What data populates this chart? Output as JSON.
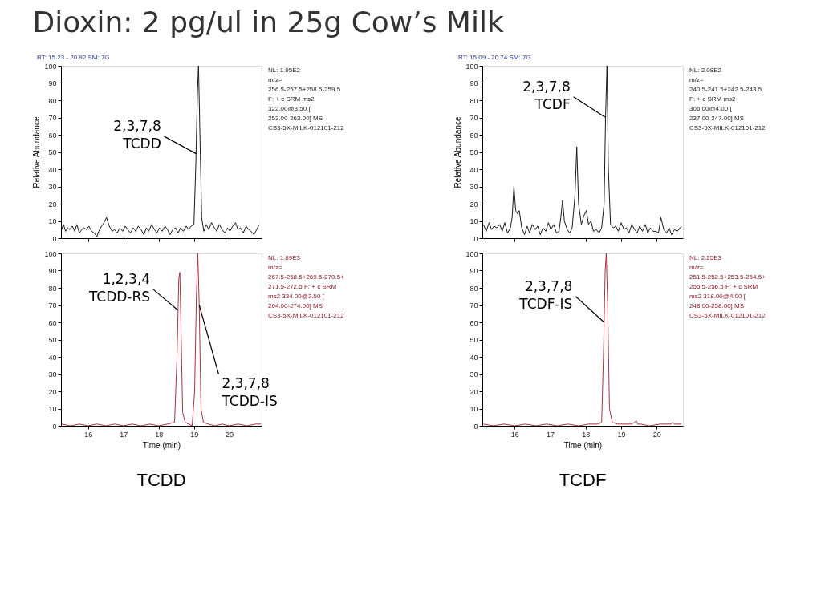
{
  "chart_data": [
    {
      "type": "line",
      "title": "Dioxin: 2 pg/ul in 25g Cow’s Milk",
      "ylabel": "Relative Abundance",
      "xlim": [
        15.23,
        20.92
      ],
      "ylim": [
        0,
        100
      ],
      "xticks": [
        16,
        17,
        18,
        19,
        20
      ],
      "yticks": [
        0,
        10,
        20,
        30,
        40,
        50,
        60,
        70,
        80,
        90,
        100
      ],
      "tick_labels": "y",
      "annotations": [
        "RT: 15.23 - 20.92   SM: 7G",
        "NL: 1.95E2\nm/z=\n256.5-257.5+258.5-259.5\nF: + c SRM ms2\n322.00@3.50 [\n253.00-263.00] MS\nCS3-5X-MILK-012101-212",
        {
          "text": "2,3,7,8\nTCDD",
          "x": 19.06,
          "y": 49
        }
      ],
      "series": [
        {
          "color": "#1a1a1a",
          "x": [
            15.25,
            15.3,
            15.36,
            15.42,
            15.48,
            15.55,
            15.62,
            15.68,
            15.75,
            15.82,
            15.88,
            15.95,
            16.02,
            16.1,
            16.17,
            16.25,
            16.3,
            16.38,
            16.45,
            16.52,
            16.6,
            16.68,
            16.75,
            16.82,
            16.9,
            16.98,
            17.05,
            17.12,
            17.2,
            17.28,
            17.35,
            17.42,
            17.5,
            17.58,
            17.65,
            17.72,
            17.8,
            17.88,
            17.95,
            18.02,
            18.1,
            18.18,
            18.25,
            18.32,
            18.4,
            18.48,
            18.55,
            18.62,
            18.7,
            18.78,
            18.85,
            18.92,
            19.0,
            19.05,
            19.1,
            19.13,
            19.17,
            19.22,
            19.28,
            19.35,
            19.42,
            19.5,
            19.58,
            19.65,
            19.72,
            19.8,
            19.88,
            19.95,
            20.02,
            20.1,
            20.18,
            20.25,
            20.32,
            20.4,
            20.48,
            20.55,
            20.62,
            20.7,
            20.78,
            20.85
          ],
          "values": [
            5,
            8,
            4,
            6,
            5,
            7,
            4,
            8,
            3,
            5,
            6,
            5,
            7,
            4,
            3,
            1,
            4,
            7,
            9,
            12,
            7,
            4,
            5,
            3,
            6,
            4,
            7,
            5,
            3,
            6,
            4,
            7,
            5,
            2,
            6,
            4,
            8,
            5,
            3,
            6,
            4,
            7,
            5,
            2,
            5,
            6,
            3,
            6,
            4,
            7,
            5,
            7,
            8,
            40,
            85,
            100,
            60,
            12,
            4,
            8,
            5,
            9,
            6,
            4,
            8,
            5,
            3,
            6,
            4,
            7,
            9,
            5,
            6,
            3,
            7,
            5,
            4,
            2,
            5,
            8
          ]
        }
      ]
    },
    {
      "type": "line",
      "xlabel": "Time (min)",
      "xlim": [
        15.23,
        20.92
      ],
      "ylim": [
        0,
        100
      ],
      "xticks": [
        16,
        17,
        18,
        19,
        20
      ],
      "yticks": [
        0,
        10,
        20,
        30,
        40,
        50,
        60,
        70,
        80,
        90,
        100
      ],
      "annotations": [
        "NL: 1.89E3\nm/z=\n267.5-268.5+269.5-270.5+\n271.5-272.5 F: + c SRM\nms2 334.00@3.50 [\n264.00-274.00] MS\nCS3-5X-MILK-012101-212",
        "TCDD",
        {
          "text": "1,2,3,4\nTCDD-RS",
          "x": 18.55,
          "y": 67
        },
        {
          "text": "2,3,7,8\nTCDD-IS",
          "x": 19.15,
          "y": 70
        }
      ],
      "series": [
        {
          "color": "#a8323e",
          "x": [
            15.25,
            15.5,
            15.75,
            16.0,
            16.25,
            16.5,
            16.75,
            17.0,
            17.25,
            17.5,
            17.75,
            18.0,
            18.25,
            18.45,
            18.52,
            18.57,
            18.6,
            18.63,
            18.68,
            18.75,
            18.85,
            18.95,
            19.02,
            19.07,
            19.11,
            19.15,
            19.2,
            19.27,
            19.4,
            19.6,
            19.8,
            20.0,
            20.25,
            20.5,
            20.75,
            20.9
          ],
          "values": [
            1,
            0,
            1,
            0,
            1,
            0,
            1,
            0,
            1,
            0,
            1,
            0,
            1,
            2,
            40,
            85,
            89,
            60,
            8,
            2,
            1,
            0,
            20,
            75,
            100,
            70,
            10,
            2,
            1,
            0,
            1,
            0,
            1,
            0,
            1,
            1
          ]
        }
      ]
    },
    {
      "type": "line",
      "ylabel": "Relative Abundance",
      "xlim": [
        15.09,
        20.74
      ],
      "ylim": [
        0,
        100
      ],
      "xticks": [
        16,
        17,
        18,
        19,
        20
      ],
      "yticks": [
        0,
        10,
        20,
        30,
        40,
        50,
        60,
        70,
        80,
        90,
        100
      ],
      "tick_labels": "y",
      "annotations": [
        "RT: 15.09 - 20.74   SM: 7G",
        "NL: 2.08E2\nm/z=\n240.5-241.5+242.5-243.5\nF: + c SRM ms2\n306.00@4.00 [\n237.00-247.00] MS\nCS3-5X-MILK-012101-212",
        {
          "text": "2,3,7,8\nTCDF",
          "x": 18.56,
          "y": 70
        }
      ],
      "series": [
        {
          "color": "#1a1a1a",
          "x": [
            15.12,
            15.2,
            15.28,
            15.35,
            15.42,
            15.5,
            15.58,
            15.65,
            15.72,
            15.8,
            15.88,
            15.93,
            15.98,
            16.03,
            16.08,
            16.13,
            16.2,
            16.28,
            16.35,
            16.42,
            16.5,
            16.58,
            16.65,
            16.72,
            16.8,
            16.88,
            16.95,
            17.02,
            17.1,
            17.18,
            17.25,
            17.3,
            17.35,
            17.4,
            17.48,
            17.55,
            17.62,
            17.7,
            17.75,
            17.8,
            17.88,
            17.95,
            18.02,
            18.08,
            18.15,
            18.22,
            18.3,
            18.38,
            18.45,
            18.52,
            18.56,
            18.6,
            18.64,
            18.7,
            18.78,
            18.85,
            18.92,
            19.0,
            19.08,
            19.15,
            19.22,
            19.3,
            19.38,
            19.45,
            19.52,
            19.6,
            19.68,
            19.75,
            19.82,
            19.9,
            19.98,
            20.05,
            20.12,
            20.2,
            20.28,
            20.35,
            20.42,
            20.5,
            20.58,
            20.7
          ],
          "values": [
            8,
            4,
            9,
            5,
            7,
            6,
            8,
            4,
            9,
            3,
            6,
            12,
            30,
            16,
            14,
            16,
            6,
            2,
            7,
            3,
            8,
            5,
            7,
            2,
            6,
            4,
            9,
            5,
            8,
            3,
            4,
            12,
            22,
            10,
            5,
            3,
            6,
            25,
            53,
            20,
            8,
            13,
            16,
            8,
            10,
            4,
            5,
            3,
            6,
            20,
            70,
            100,
            40,
            8,
            6,
            7,
            4,
            9,
            5,
            6,
            3,
            8,
            5,
            3,
            7,
            4,
            8,
            3,
            6,
            4,
            4,
            3,
            12,
            5,
            3,
            6,
            2,
            5,
            4,
            7
          ]
        }
      ]
    },
    {
      "type": "line",
      "xlabel": "Time (min)",
      "xlim": [
        15.09,
        20.74
      ],
      "ylim": [
        0,
        100
      ],
      "xticks": [
        16,
        17,
        18,
        19,
        20
      ],
      "yticks": [
        0,
        10,
        20,
        30,
        40,
        50,
        60,
        70,
        80,
        90,
        100
      ],
      "annotations": [
        "NL: 2.25E3\nm/z=\n251.5-252.5+253.5-254.5+\n255.5-256.5 F: + c SRM\nms2 318.00@4.00 [\n248.00-258.00] MS\nCS3-5X-MILK-012101-212",
        "TCDF",
        {
          "text": "2,3,7,8\nTCDF-IS",
          "x": 18.52,
          "y": 60
        }
      ],
      "series": [
        {
          "color": "#a8323e",
          "x": [
            15.12,
            15.4,
            15.7,
            16.0,
            16.3,
            16.6,
            16.9,
            17.2,
            17.5,
            17.8,
            18.1,
            18.35,
            18.45,
            18.5,
            18.55,
            18.58,
            18.62,
            18.67,
            18.75,
            18.9,
            19.1,
            19.3,
            19.38,
            19.42,
            19.47,
            19.55,
            19.8,
            20.1,
            20.4,
            20.45,
            20.5,
            20.7
          ],
          "values": [
            1,
            0,
            1,
            0,
            1,
            0,
            1,
            0,
            1,
            0,
            1,
            1,
            2,
            40,
            90,
            100,
            70,
            10,
            2,
            1,
            1,
            1,
            2,
            3,
            1,
            1,
            0,
            1,
            1,
            2,
            1,
            1
          ]
        }
      ]
    }
  ]
}
